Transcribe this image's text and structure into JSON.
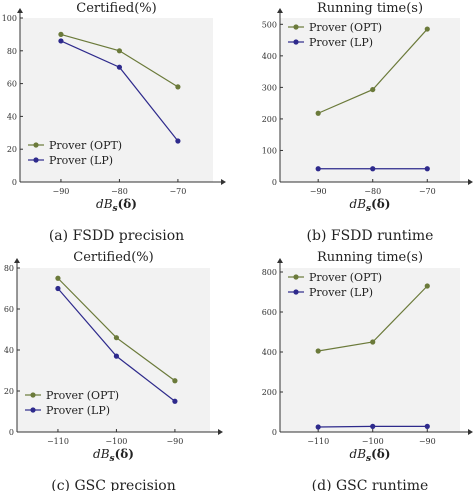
{
  "chart_data": [
    {
      "type": "line",
      "panel": "a",
      "title": "Certified(%)",
      "xlabel": "dB_s(δ)",
      "xlabel_main": "dB",
      "xlabel_sub": "s",
      "xlabel_arg": "(δ)",
      "caption": "(a)  FSDD precision",
      "x": [
        -90,
        -80,
        -70
      ],
      "xlim": [
        -97,
        -64
      ],
      "ylim": [
        0,
        100
      ],
      "xticks": [
        "−90",
        "−80",
        "−70"
      ],
      "yticks": [
        "0",
        "20",
        "40",
        "60",
        "80",
        "100"
      ],
      "ytick_values": [
        0,
        20,
        40,
        60,
        80,
        100
      ],
      "grid": false,
      "legend": "bottom-left",
      "series": [
        {
          "name": "Prover (OPT)",
          "values": [
            90,
            80,
            58
          ]
        },
        {
          "name": "Prover (LP)",
          "values": [
            86,
            70,
            25
          ]
        }
      ]
    },
    {
      "type": "line",
      "panel": "b",
      "title": "Running time(s)",
      "xlabel": "dB_s(δ)",
      "xlabel_main": "dB",
      "xlabel_sub": "s",
      "xlabel_arg": "(δ)",
      "caption": "(b)  FSDD runtime",
      "x": [
        -90,
        -80,
        -70
      ],
      "xlim": [
        -97,
        -64
      ],
      "ylim": [
        0,
        520
      ],
      "xticks": [
        "−90",
        "−80",
        "−70"
      ],
      "yticks": [
        "0",
        "100",
        "200",
        "300",
        "400",
        "500"
      ],
      "ytick_values": [
        0,
        100,
        200,
        300,
        400,
        500
      ],
      "grid": false,
      "legend": "top-left",
      "series": [
        {
          "name": "Prover (OPT)",
          "values": [
            218,
            293,
            485
          ]
        },
        {
          "name": "Prover (LP)",
          "values": [
            42,
            42,
            42
          ]
        }
      ]
    },
    {
      "type": "line",
      "panel": "c",
      "title": "Certified(%)",
      "xlabel": "dB_s(δ)",
      "xlabel_main": "dB",
      "xlabel_sub": "s",
      "xlabel_arg": "(δ)",
      "caption": "(c)  GSC precision",
      "x": [
        -110,
        -100,
        -90
      ],
      "xlim": [
        -117,
        -84
      ],
      "ylim": [
        0,
        80
      ],
      "xticks": [
        "−110",
        "−100",
        "−90"
      ],
      "yticks": [
        "0",
        "20",
        "40",
        "60",
        "80"
      ],
      "ytick_values": [
        0,
        20,
        40,
        60,
        80
      ],
      "grid": false,
      "legend": "bottom-left",
      "series": [
        {
          "name": "Prover (OPT)",
          "values": [
            75,
            46,
            25
          ]
        },
        {
          "name": "Prover (LP)",
          "values": [
            70,
            37,
            15
          ]
        }
      ]
    },
    {
      "type": "line",
      "panel": "d",
      "title": "Running time(s)",
      "xlabel": "dB_s(δ)",
      "xlabel_main": "dB",
      "xlabel_sub": "s",
      "xlabel_arg": "(δ)",
      "caption": "(d)  GSC runtime",
      "x": [
        -110,
        -100,
        -90
      ],
      "xlim": [
        -117,
        -84
      ],
      "ylim": [
        0,
        820
      ],
      "xticks": [
        "−110",
        "−100",
        "−90"
      ],
      "yticks": [
        "0",
        "200",
        "400",
        "600",
        "800"
      ],
      "ytick_values": [
        0,
        200,
        400,
        600,
        800
      ],
      "grid": false,
      "legend": "top-left",
      "series": [
        {
          "name": "Prover (OPT)",
          "values": [
            405,
            450,
            730
          ]
        },
        {
          "name": "Prover (LP)",
          "values": [
            25,
            28,
            28
          ]
        }
      ]
    }
  ],
  "colors": {
    "opt": "#6b7a3a",
    "lp": "#2e2a8c",
    "plot_bg": "#f2f2f2",
    "axis": "#333333"
  }
}
